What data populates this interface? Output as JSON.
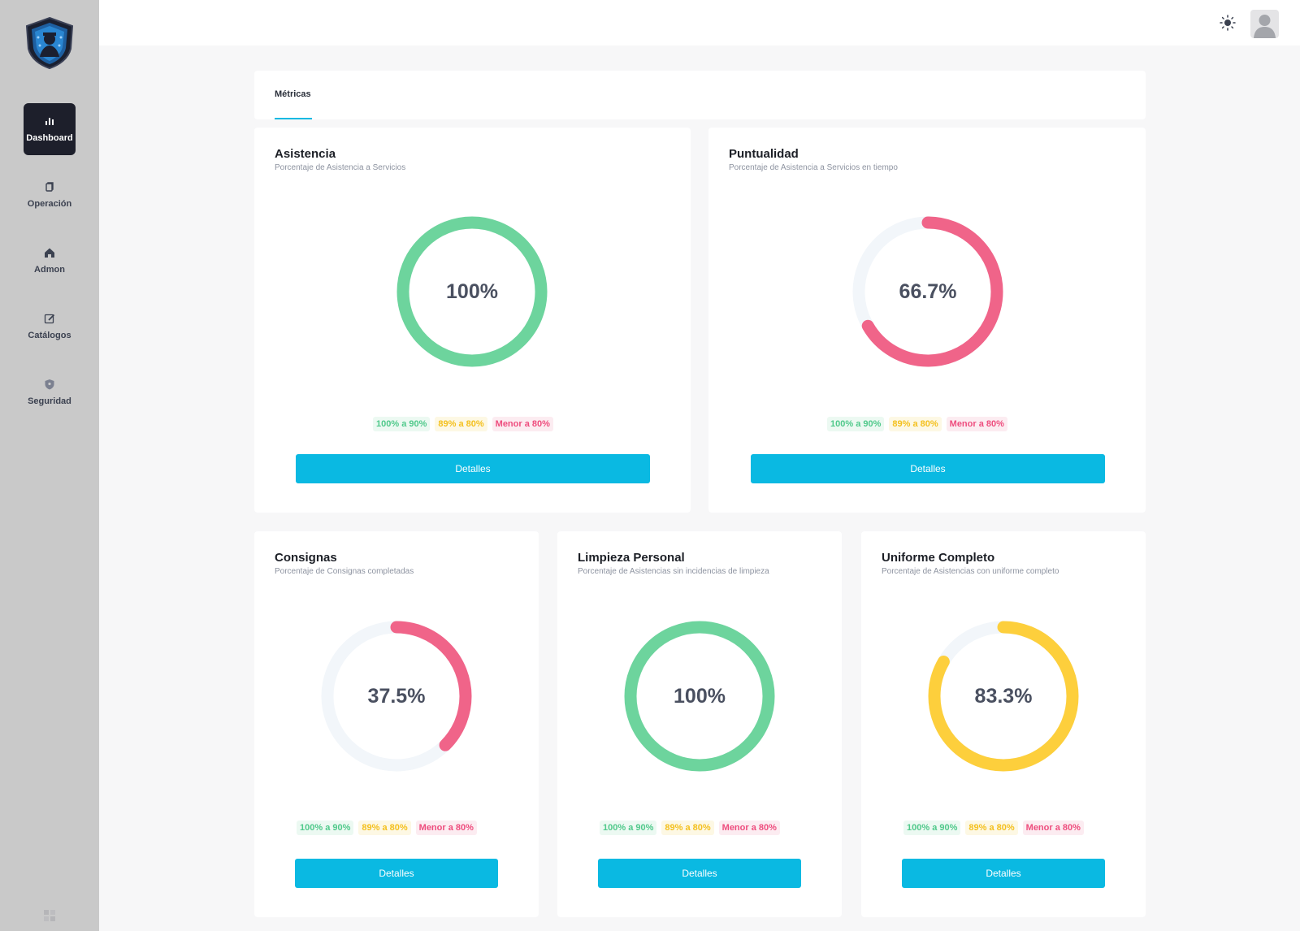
{
  "sidebar": {
    "items": [
      {
        "label": "Dashboard",
        "icon": "bar-chart-icon"
      },
      {
        "label": "Operación",
        "icon": "copy-icon"
      },
      {
        "label": "Admon",
        "icon": "home-icon"
      },
      {
        "label": "Catálogos",
        "icon": "edit-icon"
      },
      {
        "label": "Seguridad",
        "icon": "shield-icon"
      }
    ]
  },
  "header": {
    "theme_icon": "sun-icon",
    "avatar_icon": "user-avatar-icon"
  },
  "tabs": [
    {
      "label": "Métricas"
    }
  ],
  "legend": {
    "green": "100% a 90%",
    "yellow": "89% a 80%",
    "red": "Menor a 80%"
  },
  "button_label": "Detalles",
  "cards": [
    {
      "title": "Asistencia",
      "subtitle": "Porcentaje de Asistencia a Servicios",
      "value_text": "100%",
      "value": 100,
      "color": "#6dd49d"
    },
    {
      "title": "Puntualidad",
      "subtitle": "Porcentaje de Asistencia a Servicios en tiempo",
      "value_text": "66.7%",
      "value": 66.7,
      "color": "#f06489"
    },
    {
      "title": "Consignas",
      "subtitle": "Porcentaje de Consignas completadas",
      "value_text": "37.5%",
      "value": 37.5,
      "color": "#f06489"
    },
    {
      "title": "Limpieza Personal",
      "subtitle": "Porcentaje de Asistencias sin incidencias de limpieza",
      "value_text": "100%",
      "value": 100,
      "color": "#6dd49d"
    },
    {
      "title": "Uniforme Completo",
      "subtitle": "Porcentaje de Asistencias con uniforme completo",
      "value_text": "83.3%",
      "value": 83.3,
      "color": "#fdcf3c"
    }
  ],
  "colors": {
    "accent": "#0ab9e2",
    "track": "#f2f6fa"
  }
}
